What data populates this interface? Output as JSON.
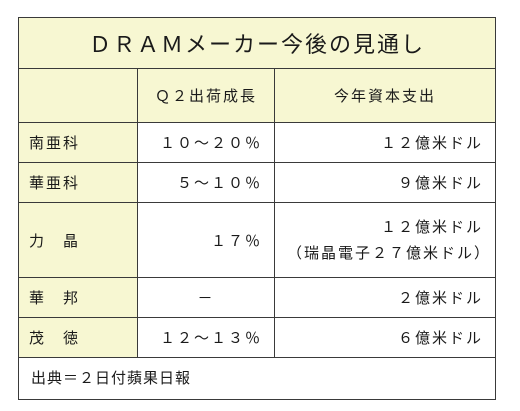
{
  "title": "ＤＲＡＭメーカー今後の見通し",
  "headers": [
    "",
    "Ｑ２出荷成長",
    "今年資本支出"
  ],
  "rows": [
    {
      "company": "南亜科",
      "growth": "１０～２０％",
      "capex": "１２億米ドル",
      "capex_note": ""
    },
    {
      "company": "華亜科",
      "growth": "５～１０％",
      "capex": "９億米ドル",
      "capex_note": ""
    },
    {
      "company": "力　晶",
      "growth": "１７％",
      "capex": "１２億米ドル",
      "capex_note": "（瑞晶電子２７億米ドル）"
    },
    {
      "company": "華　邦",
      "growth": "－",
      "capex": "２億米ドル",
      "capex_note": ""
    },
    {
      "company": "茂　徳",
      "growth": "１２～１３％",
      "capex": "６億米ドル",
      "capex_note": ""
    }
  ],
  "source": "出典＝２日付蘋果日報"
}
